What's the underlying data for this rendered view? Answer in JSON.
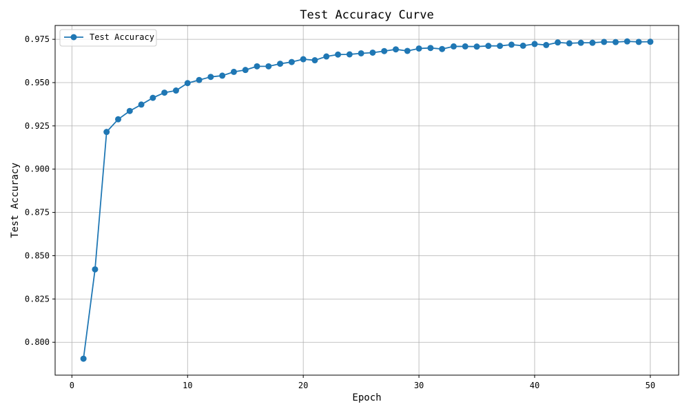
{
  "chart_data": {
    "type": "line",
    "title": "Test Accuracy Curve",
    "xlabel": "Epoch",
    "ylabel": "Test Accuracy",
    "xlim": [
      -1.45,
      52.45
    ],
    "ylim": [
      0.781,
      0.983
    ],
    "xticks": [
      0,
      10,
      20,
      30,
      40,
      50
    ],
    "yticks": [
      0.8,
      0.825,
      0.85,
      0.875,
      0.9,
      0.925,
      0.95,
      0.975
    ],
    "grid": true,
    "legend_position": "top-left",
    "series": [
      {
        "name": "Test Accuracy",
        "color": "#1f77b4",
        "marker": "circle",
        "x": [
          1,
          2,
          3,
          4,
          5,
          6,
          7,
          8,
          9,
          10,
          11,
          12,
          13,
          14,
          15,
          16,
          17,
          18,
          19,
          20,
          21,
          22,
          23,
          24,
          25,
          26,
          27,
          28,
          29,
          30,
          31,
          32,
          33,
          34,
          35,
          36,
          37,
          38,
          39,
          40,
          41,
          42,
          43,
          44,
          45,
          46,
          47,
          48,
          49,
          50
        ],
        "y": [
          0.7905,
          0.8421,
          0.9215,
          0.9288,
          0.9336,
          0.9373,
          0.9412,
          0.9442,
          0.9454,
          0.9497,
          0.9515,
          0.9533,
          0.954,
          0.9562,
          0.9573,
          0.9594,
          0.9594,
          0.9609,
          0.9619,
          0.9635,
          0.9629,
          0.9651,
          0.9662,
          0.9663,
          0.9669,
          0.9673,
          0.9682,
          0.9692,
          0.9683,
          0.9697,
          0.97,
          0.9694,
          0.9709,
          0.9709,
          0.9708,
          0.9712,
          0.9712,
          0.9719,
          0.9713,
          0.9723,
          0.9717,
          0.9732,
          0.9727,
          0.973,
          0.973,
          0.9735,
          0.9734,
          0.9738,
          0.9735,
          0.9736
        ]
      }
    ]
  }
}
